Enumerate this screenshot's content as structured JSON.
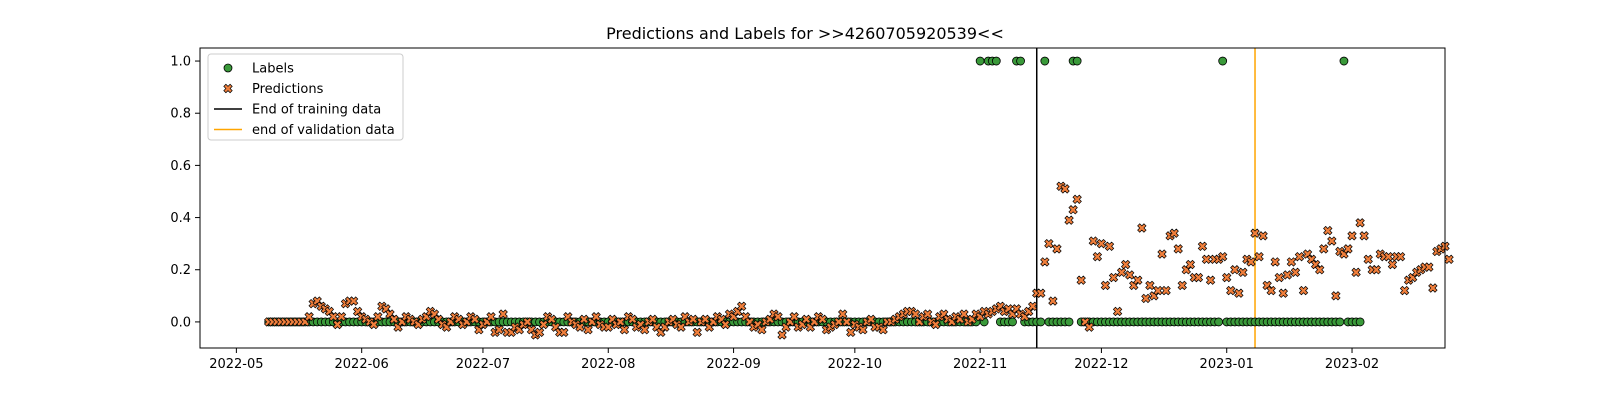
{
  "chart_data": {
    "type": "scatter",
    "title": "Predictions and Labels for >>4260705920539<<",
    "xlabel": "",
    "ylabel": "",
    "xlim": [
      "2022-04-22",
      "2023-02-24"
    ],
    "ylim": [
      -0.1,
      1.05
    ],
    "grid": false,
    "legend_position": "top-left",
    "x_ticks": [
      "2022-05",
      "2022-06",
      "2022-07",
      "2022-08",
      "2022-09",
      "2022-10",
      "2022-11",
      "2022-12",
      "2023-01",
      "2023-02"
    ],
    "y_ticks": [
      "0.0",
      "0.2",
      "0.4",
      "0.6",
      "0.8",
      "1.0"
    ],
    "x_start": "2022-05-09",
    "x_end": "2023-02-03",
    "vlines": [
      {
        "name": "End of training data",
        "x": "2022-11-15",
        "color": "#000000"
      },
      {
        "name": "end of validation data",
        "x": "2023-01-08",
        "color": "#ffa500"
      }
    ],
    "series": [
      {
        "name": "Labels",
        "marker": "circle",
        "color": "#3a9a3a",
        "ones": [
          "2022-11-01",
          "2022-11-03",
          "2022-11-04",
          "2022-11-05",
          "2022-11-10",
          "2022-11-11",
          "2022-11-17",
          "2022-11-24",
          "2022-11-25",
          "2022-12-31",
          "2023-01-30"
        ]
      },
      {
        "name": "Predictions",
        "marker": "x",
        "color": "#f07f3c",
        "values": [
          0.0,
          0.0,
          0.0,
          0.0,
          0.0,
          0.0,
          0.0,
          0.0,
          0.0,
          0.0,
          0.02,
          0.07,
          0.08,
          0.06,
          0.05,
          0.04,
          0.02,
          -0.01,
          0.02,
          0.07,
          0.08,
          0.08,
          0.04,
          0.02,
          0.01,
          0.0,
          -0.01,
          0.02,
          0.06,
          0.05,
          0.03,
          0.01,
          -0.02,
          0.0,
          0.02,
          0.01,
          0.0,
          -0.01,
          0.01,
          0.02,
          0.04,
          0.03,
          0.01,
          -0.01,
          -0.02,
          0.0,
          0.02,
          0.01,
          -0.01,
          0.0,
          0.02,
          0.01,
          -0.03,
          -0.01,
          0.0,
          0.02,
          -0.04,
          -0.03,
          0.03,
          -0.04,
          -0.04,
          -0.02,
          -0.03,
          -0.01,
          0.0,
          -0.03,
          -0.05,
          -0.04,
          -0.01,
          0.02,
          0.01,
          -0.02,
          -0.04,
          -0.04,
          0.02,
          0.0,
          -0.01,
          -0.02,
          0.01,
          -0.03,
          0.0,
          0.02,
          -0.01,
          -0.02,
          -0.02,
          0.01,
          -0.01,
          0.0,
          -0.03,
          0.02,
          0.01,
          -0.02,
          -0.01,
          -0.03,
          0.0,
          0.01,
          -0.02,
          -0.04,
          -0.02,
          0.0,
          0.01,
          -0.01,
          -0.02,
          0.02,
          0.0,
          0.01,
          -0.04,
          0.0,
          0.01,
          -0.02,
          0.0,
          0.02,
          0.01,
          -0.01,
          0.03,
          0.02,
          0.04,
          0.06,
          0.02,
          0.0,
          -0.02,
          -0.01,
          -0.03,
          0.0,
          0.01,
          0.03,
          0.02,
          -0.05,
          -0.02,
          0.0,
          0.02,
          -0.02,
          -0.01,
          0.01,
          -0.02,
          0.0,
          0.02,
          0.01,
          -0.03,
          -0.02,
          -0.01,
          0.0,
          0.03,
          0.0,
          -0.04,
          -0.01,
          -0.02,
          -0.03,
          0.0,
          0.01,
          -0.02,
          -0.02,
          -0.03,
          0.0,
          0.0,
          0.01,
          0.02,
          0.03,
          0.04,
          0.04,
          0.03,
          0.0,
          0.02,
          0.03,
          0.0,
          -0.01,
          0.02,
          0.03,
          0.01,
          0.0,
          0.02,
          0.01,
          0.03,
          0.0,
          0.01,
          0.03,
          0.02,
          0.04,
          0.03,
          0.04,
          0.05,
          0.06,
          0.04,
          0.05,
          0.03,
          0.05,
          0.03,
          0.02,
          0.04,
          0.06,
          0.11,
          0.11,
          0.23,
          0.3,
          0.08,
          0.28,
          0.52,
          0.51,
          0.39,
          0.43,
          0.47,
          0.16,
          0.0,
          -0.02,
          0.31,
          0.25,
          0.3,
          0.14,
          0.29,
          0.17,
          0.04,
          0.19,
          0.22,
          0.18,
          0.14,
          0.16,
          0.36,
          0.09,
          0.14,
          0.1,
          0.12,
          0.26,
          0.12,
          0.33,
          0.34,
          0.28,
          0.14,
          0.2,
          0.22,
          0.17,
          0.17,
          0.29,
          0.24,
          0.16,
          0.24,
          0.24,
          0.25,
          0.17,
          0.12,
          0.2,
          0.11,
          0.19,
          0.24,
          0.23,
          0.34,
          0.25,
          0.33,
          0.14,
          0.12,
          0.23,
          0.17,
          0.11,
          0.18,
          0.23,
          0.19,
          0.25,
          0.12,
          0.26,
          0.24,
          0.22,
          0.2,
          0.28,
          0.35,
          0.31,
          0.1,
          0.27,
          0.26,
          0.28,
          0.33,
          0.19,
          0.38,
          0.33,
          0.24,
          0.2,
          0.2,
          0.26,
          0.25,
          0.25,
          0.22,
          0.25,
          0.25,
          0.12,
          0.16,
          0.17,
          0.19,
          0.2,
          0.21,
          0.21,
          0.13,
          0.27,
          0.28,
          0.29,
          0.24
        ]
      }
    ]
  }
}
